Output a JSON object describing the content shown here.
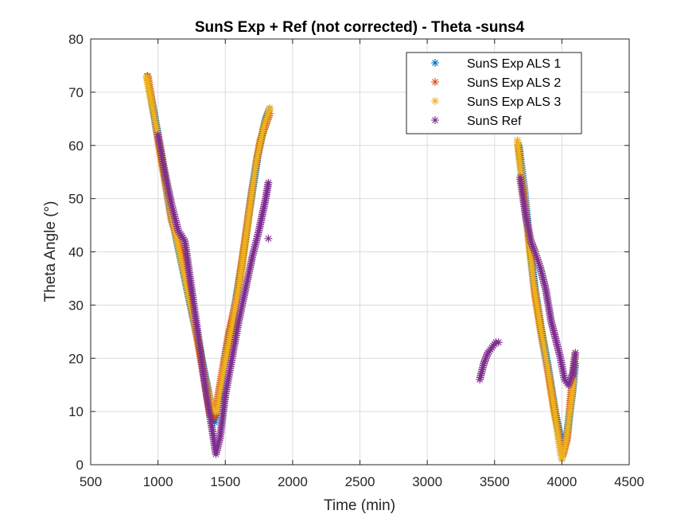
{
  "chart_data": {
    "type": "scatter",
    "title": "SunS Exp + Ref (not corrected) - Theta -suns4",
    "xlabel": "Time (min)",
    "ylabel": "Theta Angle (°)",
    "xlim": [
      500,
      4500
    ],
    "ylim": [
      0,
      80
    ],
    "xticks": [
      "500",
      "1000",
      "1500",
      "2000",
      "2500",
      "3000",
      "3500",
      "4000",
      "4500"
    ],
    "yticks": [
      "0",
      "10",
      "20",
      "30",
      "40",
      "50",
      "60",
      "70",
      "80"
    ],
    "grid": true,
    "legend_position": "top-right",
    "marker": "asterisk",
    "series": [
      {
        "name": "SunS Exp ALS 1",
        "color": "#0072BD",
        "segments": [
          [
            [
              920,
              73
            ],
            [
              1000,
              62
            ],
            [
              1100,
              47
            ],
            [
              1200,
              35
            ],
            [
              1300,
              23
            ],
            [
              1380,
              13
            ],
            [
              1420,
              8
            ],
            [
              1450,
              12
            ],
            [
              1500,
              20
            ],
            [
              1560,
              28
            ],
            [
              1620,
              37
            ],
            [
              1680,
              48
            ],
            [
              1740,
              58
            ],
            [
              1800,
              65
            ],
            [
              1830,
              67
            ]
          ],
          [
            [
              3680,
              60
            ],
            [
              3720,
              52
            ],
            [
              3760,
              42
            ],
            [
              3800,
              33
            ],
            [
              3850,
              25
            ],
            [
              3900,
              18
            ],
            [
              3950,
              10
            ],
            [
              3990,
              5
            ],
            [
              4010,
              3
            ],
            [
              4040,
              6
            ],
            [
              4070,
              12
            ],
            [
              4100,
              19
            ]
          ]
        ]
      },
      {
        "name": "SunS Exp ALS 2",
        "color": "#D95319",
        "segments": [
          [
            [
              925,
              73
            ],
            [
              1000,
              61
            ],
            [
              1100,
              46
            ],
            [
              1180,
              40
            ],
            [
              1250,
              30
            ],
            [
              1330,
              18
            ],
            [
              1390,
              9
            ],
            [
              1420,
              9
            ],
            [
              1460,
              15
            ],
            [
              1520,
              24
            ],
            [
              1580,
              31
            ],
            [
              1640,
              41
            ],
            [
              1700,
              52
            ],
            [
              1760,
              61
            ],
            [
              1830,
              66
            ]
          ],
          [
            [
              3680,
              59
            ],
            [
              3720,
              50
            ],
            [
              3760,
              41
            ],
            [
              3800,
              32
            ],
            [
              3850,
              24
            ],
            [
              3900,
              17
            ],
            [
              3950,
              9
            ],
            [
              3990,
              4
            ],
            [
              4010,
              2
            ],
            [
              4040,
              5
            ],
            [
              4070,
              14
            ],
            [
              4100,
              21
            ]
          ]
        ]
      },
      {
        "name": "SunS Exp ALS 3",
        "color": "#EDB120",
        "segments": [
          [
            [
              915,
              73
            ],
            [
              990,
              63
            ],
            [
              1090,
              48
            ],
            [
              1190,
              36
            ],
            [
              1290,
              24
            ],
            [
              1370,
              14
            ],
            [
              1410,
              10
            ],
            [
              1440,
              10
            ],
            [
              1490,
              18
            ],
            [
              1550,
              26
            ],
            [
              1610,
              35
            ],
            [
              1670,
              46
            ],
            [
              1730,
              57
            ],
            [
              1790,
              64
            ],
            [
              1830,
              67
            ]
          ],
          [
            [
              3670,
              61
            ],
            [
              3710,
              52
            ],
            [
              3750,
              43
            ],
            [
              3790,
              34
            ],
            [
              3840,
              26
            ],
            [
              3890,
              19
            ],
            [
              3940,
              11
            ],
            [
              3980,
              4
            ],
            [
              4000,
              1
            ],
            [
              4030,
              4
            ],
            [
              4060,
              10
            ],
            [
              4090,
              16
            ]
          ]
        ]
      },
      {
        "name": "SunS Ref",
        "color": "#7E2F8E",
        "segments": [
          [
            [
              1000,
              62
            ],
            [
              1050,
              55
            ],
            [
              1100,
              49
            ],
            [
              1150,
              44
            ],
            [
              1200,
              42
            ],
            [
              1250,
              33
            ],
            [
              1300,
              24
            ],
            [
              1350,
              15
            ],
            [
              1400,
              7
            ],
            [
              1430,
              2
            ],
            [
              1460,
              5
            ],
            [
              1500,
              13
            ],
            [
              1550,
              20
            ],
            [
              1600,
              27
            ],
            [
              1650,
              33
            ],
            [
              1700,
              39
            ],
            [
              1750,
              44
            ],
            [
              1800,
              50
            ],
            [
              1820,
              53
            ]
          ],
          [
            [
              1820,
              42.5
            ]
          ],
          [
            [
              3390,
              16
            ],
            [
              3420,
              19
            ],
            [
              3450,
              21
            ],
            [
              3480,
              22
            ],
            [
              3510,
              23
            ],
            [
              3530,
              23
            ]
          ],
          [
            [
              3690,
              54
            ],
            [
              3730,
              47
            ],
            [
              3770,
              42
            ],
            [
              3800,
              40
            ],
            [
              3840,
              37
            ],
            [
              3880,
              33
            ],
            [
              3920,
              27
            ],
            [
              3960,
              23
            ],
            [
              3990,
              20
            ],
            [
              4020,
              16
            ],
            [
              4050,
              15
            ],
            [
              4080,
              17
            ],
            [
              4100,
              21
            ]
          ]
        ]
      }
    ]
  }
}
